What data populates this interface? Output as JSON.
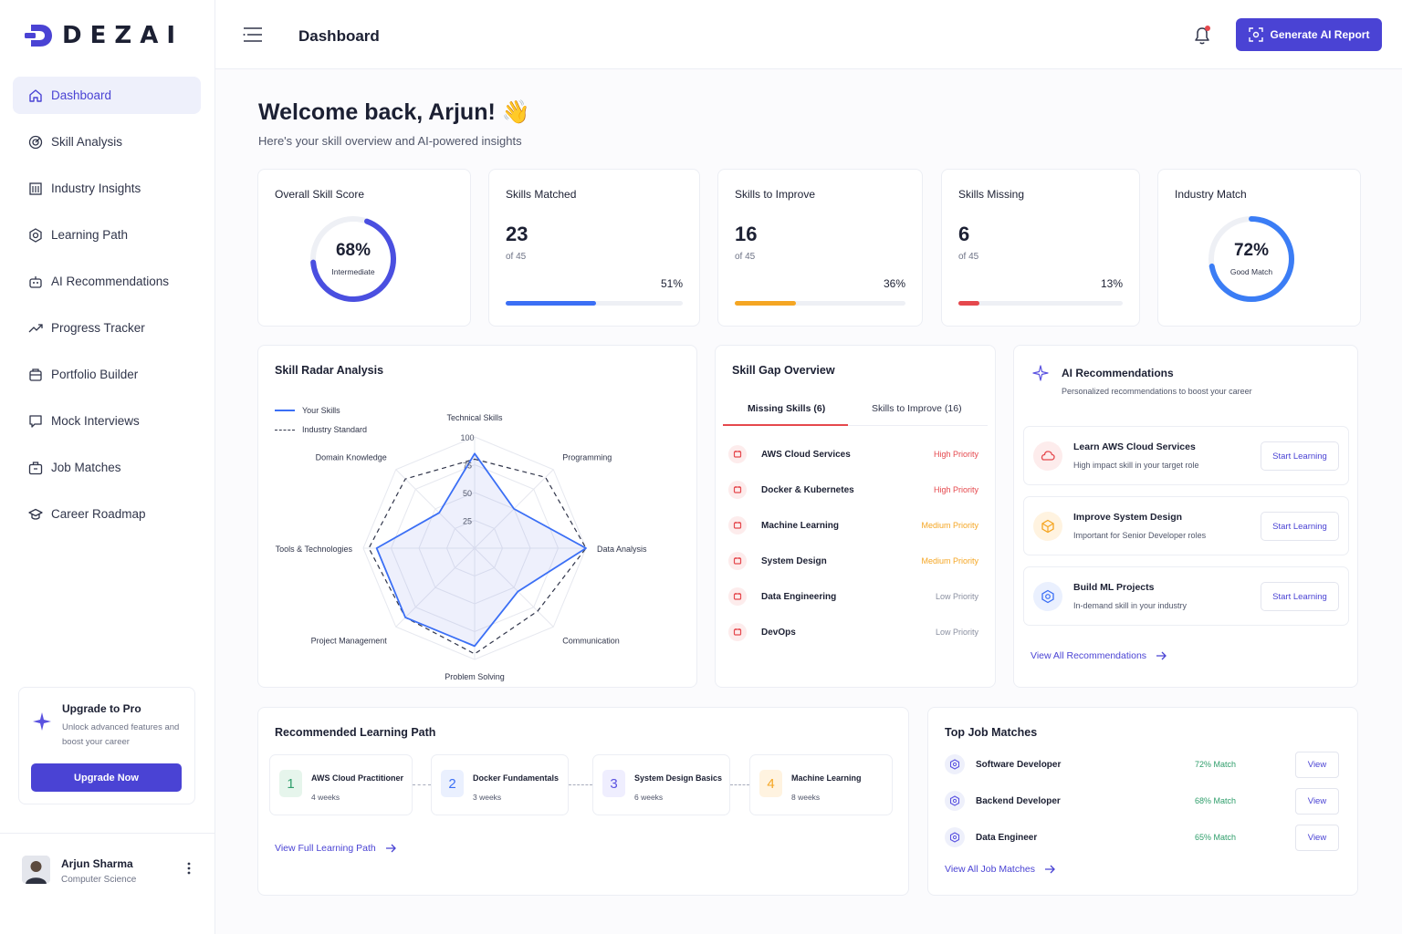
{
  "brand": {
    "name": "DEZAI"
  },
  "sidebar": {
    "items": [
      {
        "label": "Dashboard",
        "icon": "home-icon",
        "active": true
      },
      {
        "label": "Skill Analysis",
        "icon": "target-icon"
      },
      {
        "label": "Industry Insights",
        "icon": "building-icon"
      },
      {
        "label": "Learning Path",
        "icon": "settings-badge-icon"
      },
      {
        "label": "AI Recommendations",
        "icon": "robot-icon"
      },
      {
        "label": "Progress Tracker",
        "icon": "trend-icon"
      },
      {
        "label": "Portfolio Builder",
        "icon": "folder-icon"
      },
      {
        "label": "Mock Interviews",
        "icon": "chat-icon"
      },
      {
        "label": "Job Matches",
        "icon": "briefcase-icon"
      },
      {
        "label": "Career Roadmap",
        "icon": "graduation-icon"
      }
    ],
    "upgrade": {
      "title": "Upgrade to Pro",
      "desc": "Unlock advanced features and boost your career",
      "button": "Upgrade Now"
    },
    "user": {
      "name": "Arjun Sharma",
      "role": "Computer Science"
    }
  },
  "header": {
    "title": "Dashboard",
    "generate_button": "Generate AI Report"
  },
  "welcome": {
    "title": "Welcome back, Arjun! 👋",
    "subtitle": "Here's your skill overview and AI-powered insights"
  },
  "stats": {
    "overall": {
      "title": "Overall Skill Score",
      "value": "68%",
      "sub": "Intermediate",
      "fraction": 0.68
    },
    "matched": {
      "title": "Skills Matched",
      "value": "23",
      "of": "of 45",
      "pct": "51%",
      "fraction": 0.51,
      "color": "#3b6ff5"
    },
    "improve": {
      "title": "Skills to Improve",
      "value": "16",
      "of": "of 45",
      "pct": "36%",
      "fraction": 0.36,
      "color": "#f5a623"
    },
    "missing": {
      "title": "Skills Missing",
      "value": "6",
      "of": "of 45",
      "pct": "13%",
      "fraction": 0.13,
      "color": "#e5484d"
    },
    "industry": {
      "title": "Industry Match",
      "value": "72%",
      "sub": "Good Match",
      "fraction": 0.72
    }
  },
  "radar": {
    "title": "Skill Radar Analysis",
    "legend_yours": "Your Skills",
    "legend_industry": "Industry Standard",
    "ticks": [
      "100",
      "75",
      "50",
      "25"
    ],
    "axes": [
      "Technical Skills",
      "Programming",
      "Data Analysis",
      "Communication",
      "Problem Solving",
      "Project Management",
      "Tools & Technologies",
      "Domain Knowledge"
    ],
    "your_skills": [
      85,
      50,
      100,
      55,
      88,
      88,
      88,
      45
    ],
    "industry_standard": [
      80,
      90,
      100,
      80,
      95,
      88,
      95,
      88
    ]
  },
  "gap": {
    "title": "Skill Gap Overview",
    "tab_missing": "Missing Skills (6)",
    "tab_improve": "Skills to Improve (16)",
    "items": [
      {
        "name": "AWS Cloud Services",
        "priority": "High Priority",
        "color": "#e5484d"
      },
      {
        "name": "Docker & Kubernetes",
        "priority": "High Priority",
        "color": "#e5484d"
      },
      {
        "name": "Machine Learning",
        "priority": "Medium Priority",
        "color": "#f5a623"
      },
      {
        "name": "System Design",
        "priority": "Medium Priority",
        "color": "#f5a623"
      },
      {
        "name": "Data Engineering",
        "priority": "Low Priority",
        "color": "#8a8fa0"
      },
      {
        "name": "DevOps",
        "priority": "Low Priority",
        "color": "#8a8fa0"
      }
    ]
  },
  "recommendations": {
    "title": "AI Recommendations",
    "subtitle": "Personalized recommendations to boost your career",
    "items": [
      {
        "title": "Learn AWS Cloud Services",
        "desc": "High impact skill in your target role",
        "button": "Start Learning",
        "icon": "cloud-icon"
      },
      {
        "title": "Improve System Design",
        "desc": "Important for Senior Developer roles",
        "button": "Start Learning",
        "icon": "cube-icon"
      },
      {
        "title": "Build ML Projects",
        "desc": "In-demand skill in your industry",
        "button": "Start Learning",
        "icon": "hexagon-icon"
      }
    ],
    "link": "View All Recommendations"
  },
  "learning_path": {
    "title": "Recommended Learning Path",
    "steps": [
      {
        "num": "1",
        "title": "AWS Cloud Practitioner",
        "duration": "4 weeks"
      },
      {
        "num": "2",
        "title": "Docker Fundamentals",
        "duration": "3 weeks"
      },
      {
        "num": "3",
        "title": "System Design Basics",
        "duration": "6 weeks"
      },
      {
        "num": "4",
        "title": "Machine Learning",
        "duration": "8 weeks"
      }
    ],
    "link": "View Full Learning Path"
  },
  "jobs": {
    "title": "Top Job Matches",
    "items": [
      {
        "name": "Software Developer",
        "match": "72% Match",
        "button": "View"
      },
      {
        "name": "Backend Developer",
        "match": "68% Match",
        "button": "View"
      },
      {
        "name": "Data Engineer",
        "match": "65% Match",
        "button": "View"
      }
    ],
    "link": "View All Job Matches"
  }
}
